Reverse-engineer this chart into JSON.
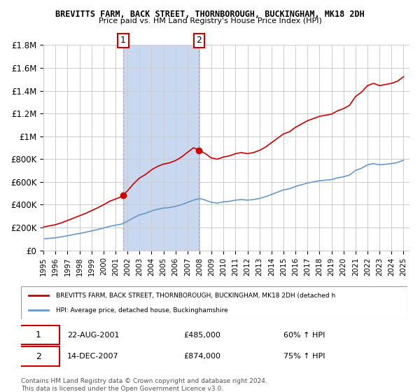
{
  "title": "BREVITTS FARM, BACK STREET, THORNBOROUGH, BUCKINGHAM, MK18 2DH",
  "subtitle": "Price paid vs. HM Land Registry's House Price Index (HPI)",
  "legend_property": "BREVITTS FARM, BACK STREET, THORNBOROUGH, BUCKINGHAM, MK18 2DH (detached h",
  "legend_hpi": "HPI: Average price, detached house, Buckinghamshire",
  "transaction1_label": "1",
  "transaction1_date": "22-AUG-2001",
  "transaction1_price": "£485,000",
  "transaction1_hpi": "60% ↑ HPI",
  "transaction2_label": "2",
  "transaction2_date": "14-DEC-2007",
  "transaction2_price": "£874,000",
  "transaction2_hpi": "75% ↑ HPI",
  "footer": "Contains HM Land Registry data © Crown copyright and database right 2024.\nThis data is licensed under the Open Government Licence v3.0.",
  "ylim": [
    0,
    1800000
  ],
  "yticks": [
    0,
    200000,
    400000,
    600000,
    800000,
    1000000,
    1200000,
    1400000,
    1600000,
    1800000
  ],
  "ytick_labels": [
    "£0",
    "£200K",
    "£400K",
    "£600K",
    "£800K",
    "£1M",
    "£1.2M",
    "£1.4M",
    "£1.6M",
    "£1.8M"
  ],
  "xlim_start": 1995.0,
  "xlim_end": 2025.5,
  "sale1_x": 2001.644,
  "sale1_y": 485000,
  "sale2_x": 2007.956,
  "sale2_y": 874000,
  "shade_color": "#c8d8f0",
  "line_property_color": "#cc0000",
  "line_hpi_color": "#6699cc",
  "background_color": "#ffffff",
  "grid_color": "#cccccc"
}
